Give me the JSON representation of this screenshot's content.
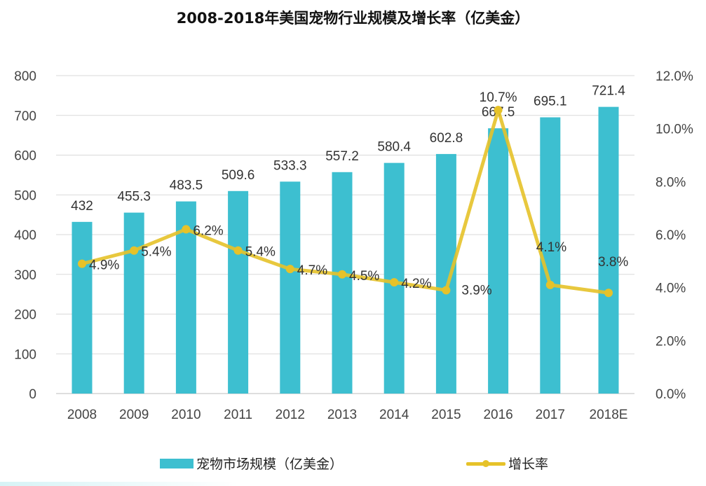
{
  "chart_data": {
    "type": "bar+line",
    "title": "2008-2018年美国宠物行业规模及增长率（亿美金）",
    "categories": [
      "2008",
      "2009",
      "2010",
      "2011",
      "2012",
      "2013",
      "2014",
      "2015",
      "2016",
      "2017",
      "2018E"
    ],
    "series": [
      {
        "name": "宠物市场规模（亿美金）",
        "type": "bar",
        "axis": "left",
        "color": "#3dbfd0",
        "values": [
          432,
          455.3,
          483.5,
          509.6,
          533.3,
          557.2,
          580.4,
          602.8,
          667.5,
          695.1,
          721.4
        ],
        "labels": [
          "432",
          "455.3",
          "483.5",
          "509.6",
          "533.3",
          "557.2",
          "580.4",
          "602.8",
          "667.5",
          "695.1",
          "721.4"
        ]
      },
      {
        "name": "增长率",
        "type": "line",
        "axis": "right",
        "color": "#e6c229",
        "values": [
          4.9,
          5.4,
          6.2,
          5.4,
          4.7,
          4.5,
          4.2,
          3.9,
          10.7,
          4.1,
          3.8
        ],
        "labels": [
          "4.9%",
          "5.4%",
          "6.2%",
          "5.4%",
          "4.7%",
          "4.5%",
          "4.2%",
          "3.9%",
          "10.7%",
          "4.1%",
          "3.8%"
        ]
      }
    ],
    "y_left": {
      "min": 0,
      "max": 800,
      "step": 100,
      "ticks": [
        "0",
        "100",
        "200",
        "300",
        "400",
        "500",
        "600",
        "700",
        "800"
      ]
    },
    "y_right": {
      "min": 0,
      "max": 12,
      "step": 2,
      "ticks": [
        "0.0%",
        "2.0%",
        "4.0%",
        "6.0%",
        "8.0%",
        "10.0%",
        "12.0%"
      ]
    },
    "xlabel": "",
    "ylabel": "",
    "grid": true,
    "legend_position": "bottom"
  },
  "legend": {
    "bar_label": "宠物市场规模（亿美金）",
    "line_label": "增长率"
  }
}
